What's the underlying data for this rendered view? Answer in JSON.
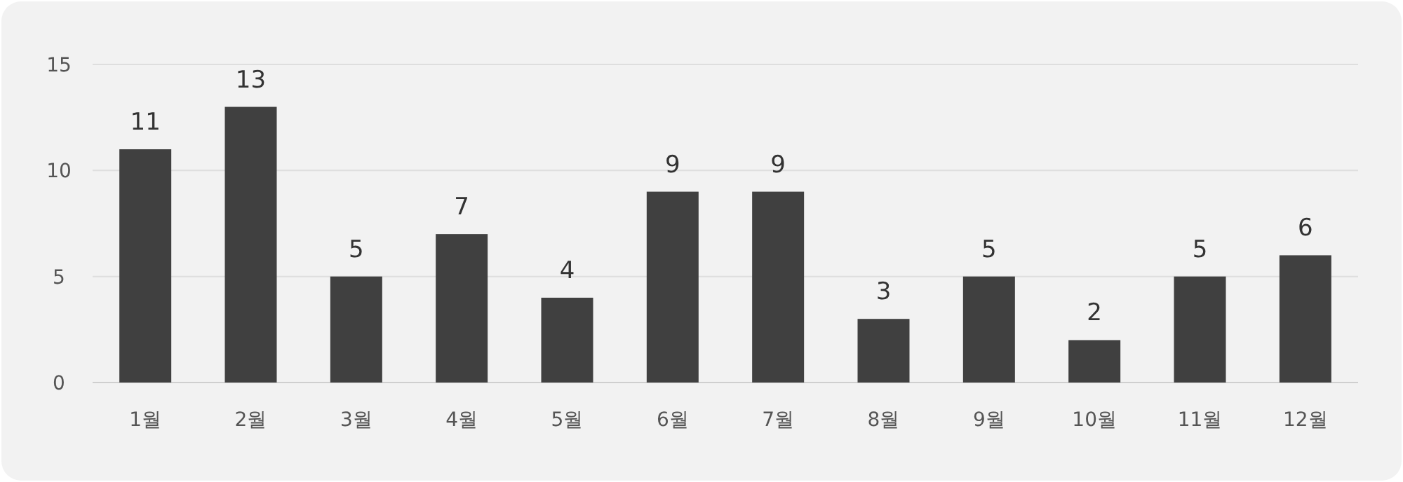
{
  "chart_data": {
    "type": "bar",
    "categories": [
      "1월",
      "2월",
      "3월",
      "4월",
      "5월",
      "6월",
      "7월",
      "8월",
      "9월",
      "10월",
      "11월",
      "12월"
    ],
    "values": [
      11,
      13,
      5,
      7,
      4,
      9,
      9,
      3,
      5,
      2,
      5,
      6
    ],
    "color": "#404040",
    "ylim": [
      0,
      15
    ],
    "yticks": [
      0,
      5,
      10,
      15
    ],
    "grid": "y",
    "data_labels": true
  }
}
